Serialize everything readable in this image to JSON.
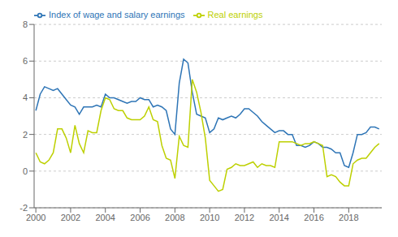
{
  "chart_data": {
    "type": "line",
    "legend": "upper left",
    "grid": true,
    "xlim": [
      1999.9,
      2019.9
    ],
    "xticks": [
      2000,
      2002,
      2004,
      2006,
      2008,
      2010,
      2012,
      2014,
      2016,
      2018
    ],
    "ylim": [
      -2,
      8
    ],
    "yticks": [
      -2,
      0,
      2,
      4,
      6,
      8
    ],
    "x": [
      2000,
      2000.25,
      2000.5,
      2000.75,
      2001,
      2001.25,
      2001.5,
      2001.75,
      2002,
      2002.25,
      2002.5,
      2002.75,
      2003,
      2003.25,
      2003.5,
      2003.75,
      2004,
      2004.25,
      2004.5,
      2004.75,
      2005,
      2005.25,
      2005.5,
      2005.75,
      2006,
      2006.25,
      2006.5,
      2006.75,
      2007,
      2007.25,
      2007.5,
      2007.75,
      2008,
      2008.25,
      2008.5,
      2008.75,
      2009,
      2009.25,
      2009.5,
      2009.75,
      2010,
      2010.25,
      2010.5,
      2010.75,
      2011,
      2011.25,
      2011.5,
      2011.75,
      2012,
      2012.25,
      2012.5,
      2012.75,
      2013,
      2013.25,
      2013.5,
      2013.75,
      2014,
      2014.25,
      2014.5,
      2014.75,
      2015,
      2015.25,
      2015.5,
      2015.75,
      2016,
      2016.25,
      2016.5,
      2016.75,
      2017,
      2017.25,
      2017.5,
      2017.75,
      2018,
      2018.25,
      2018.5,
      2018.75,
      2019,
      2019.25,
      2019.5,
      2019.75
    ],
    "series": [
      {
        "name": "Index of wage and salary earnings",
        "color": "#2e75b6",
        "values": [
          3.3,
          4.2,
          4.6,
          4.5,
          4.4,
          4.5,
          4.2,
          3.9,
          3.6,
          3.5,
          3.1,
          3.5,
          3.5,
          3.5,
          3.6,
          3.5,
          4.2,
          4.0,
          4.0,
          3.9,
          3.8,
          3.7,
          3.8,
          3.8,
          4.0,
          3.9,
          3.9,
          3.5,
          3.6,
          3.5,
          3.3,
          2.3,
          2.0,
          4.8,
          6.1,
          5.9,
          4.3,
          3.1,
          3.0,
          2.9,
          2.1,
          2.3,
          2.9,
          2.8,
          2.9,
          3.0,
          2.9,
          3.1,
          3.4,
          3.4,
          3.2,
          3.0,
          2.7,
          2.5,
          2.3,
          2.1,
          2.2,
          2.2,
          2.0,
          2.0,
          1.4,
          1.4,
          1.3,
          1.4,
          1.6,
          1.5,
          1.3,
          1.3,
          1.2,
          1.0,
          1.0,
          0.3,
          0.2,
          1.0,
          2.0,
          2.0,
          2.1,
          2.4,
          2.4,
          2.3
        ]
      },
      {
        "name": "Real earnings",
        "color": "#bdd000",
        "values": [
          1.0,
          0.5,
          0.4,
          0.6,
          1.0,
          2.3,
          2.3,
          1.8,
          1.0,
          2.5,
          1.5,
          1.0,
          2.2,
          2.1,
          2.1,
          3.3,
          4.0,
          3.9,
          3.4,
          3.3,
          3.3,
          2.9,
          2.8,
          2.8,
          2.8,
          3.0,
          3.5,
          2.8,
          2.7,
          1.4,
          0.7,
          0.6,
          -0.4,
          1.9,
          1.4,
          1.3,
          5.0,
          4.3,
          3.2,
          1.8,
          -0.5,
          -0.8,
          -1.1,
          -1.0,
          0.1,
          0.2,
          0.4,
          0.3,
          0.3,
          0.4,
          0.5,
          0.2,
          0.4,
          0.3,
          0.3,
          0.2,
          1.6,
          1.6,
          1.6,
          1.6,
          1.5,
          1.4,
          1.5,
          1.5,
          1.6,
          1.5,
          1.4,
          -0.3,
          -0.2,
          -0.3,
          -0.6,
          -0.8,
          -0.8,
          0.4,
          0.6,
          0.7,
          0.7,
          1.0,
          1.3,
          1.5
        ]
      }
    ]
  }
}
